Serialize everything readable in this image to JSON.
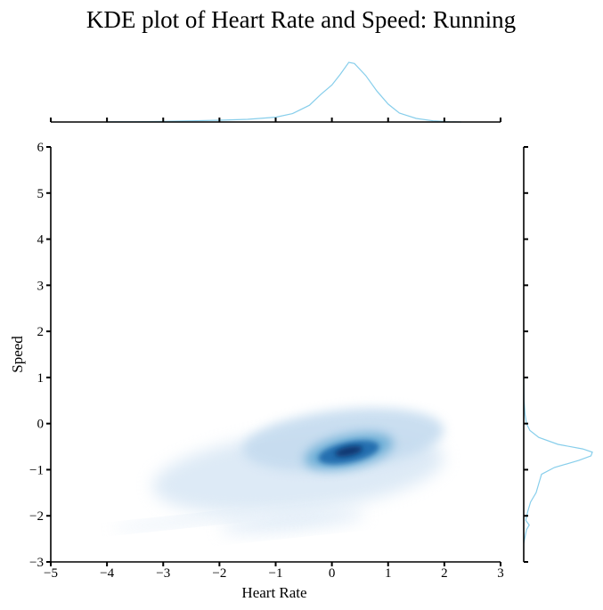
{
  "chart_data": {
    "type": "kde-joint",
    "title": "KDE plot of Heart Rate and Speed: Running",
    "xlabel": "Heart Rate",
    "ylabel": "Speed",
    "xlim": [
      -5,
      3
    ],
    "ylim": [
      -3,
      6
    ],
    "x_ticks": [
      -5,
      -4,
      -3,
      -2,
      -1,
      0,
      1,
      2,
      3
    ],
    "y_ticks": [
      -3,
      -2,
      -1,
      0,
      1,
      2,
      3,
      4,
      5,
      6
    ],
    "x_tick_labels": [
      "−5",
      "−4",
      "−3",
      "−2",
      "−1",
      "0",
      "1",
      "2",
      "3"
    ],
    "y_tick_labels": [
      "−3",
      "−2",
      "−1",
      "0",
      "1",
      "2",
      "3",
      "4",
      "5",
      "6"
    ],
    "grid": false,
    "joint_colormap": "Blues",
    "marginal_color": "#87ceeb",
    "joint_density_regions": [
      {
        "x": [
          -3.9,
          -1.4
        ],
        "y": [
          -2.2,
          -2.05
        ],
        "level": 0.05
      },
      {
        "x": [
          -2.0,
          0.6
        ],
        "y": [
          -2.3,
          -1.95
        ],
        "level": 0.05
      },
      {
        "x": [
          -3.2,
          2.0
        ],
        "y": [
          -1.9,
          -0.2
        ],
        "level": 0.08
      },
      {
        "x": [
          -1.6,
          2.0
        ],
        "y": [
          -1.0,
          0.3
        ],
        "level": 0.15
      },
      {
        "x": [
          -0.5,
          1.1
        ],
        "y": [
          -0.95,
          -0.25
        ],
        "level": 0.45
      },
      {
        "x": [
          -0.25,
          0.85
        ],
        "y": [
          -0.85,
          -0.4
        ],
        "level": 0.75
      },
      {
        "x": [
          0.05,
          0.55
        ],
        "y": [
          -0.7,
          -0.5
        ],
        "level": 1.0
      }
    ],
    "marginal_x": {
      "x": [
        -4.0,
        -3.5,
        -3.0,
        -2.5,
        -2.0,
        -1.5,
        -1.0,
        -0.7,
        -0.4,
        -0.2,
        0.0,
        0.15,
        0.3,
        0.4,
        0.6,
        0.8,
        1.0,
        1.2,
        1.5,
        1.8,
        2.1,
        2.3
      ],
      "density": [
        0.003,
        0.005,
        0.01,
        0.02,
        0.03,
        0.045,
        0.08,
        0.14,
        0.28,
        0.46,
        0.62,
        0.8,
        1.0,
        0.98,
        0.78,
        0.52,
        0.3,
        0.15,
        0.06,
        0.02,
        0.005,
        0.0
      ]
    },
    "marginal_y": {
      "y": [
        -2.6,
        -2.3,
        -2.2,
        -2.1,
        -1.9,
        -1.7,
        -1.5,
        -1.3,
        -1.1,
        -0.95,
        -0.8,
        -0.7,
        -0.62,
        -0.55,
        -0.45,
        -0.3,
        -0.15,
        0.0,
        0.2,
        0.5,
        1.0
      ],
      "density": [
        0.0,
        0.04,
        0.08,
        0.03,
        0.06,
        0.1,
        0.18,
        0.22,
        0.26,
        0.45,
        0.8,
        0.98,
        1.0,
        0.86,
        0.5,
        0.22,
        0.09,
        0.04,
        0.02,
        0.005,
        0.0
      ]
    }
  }
}
